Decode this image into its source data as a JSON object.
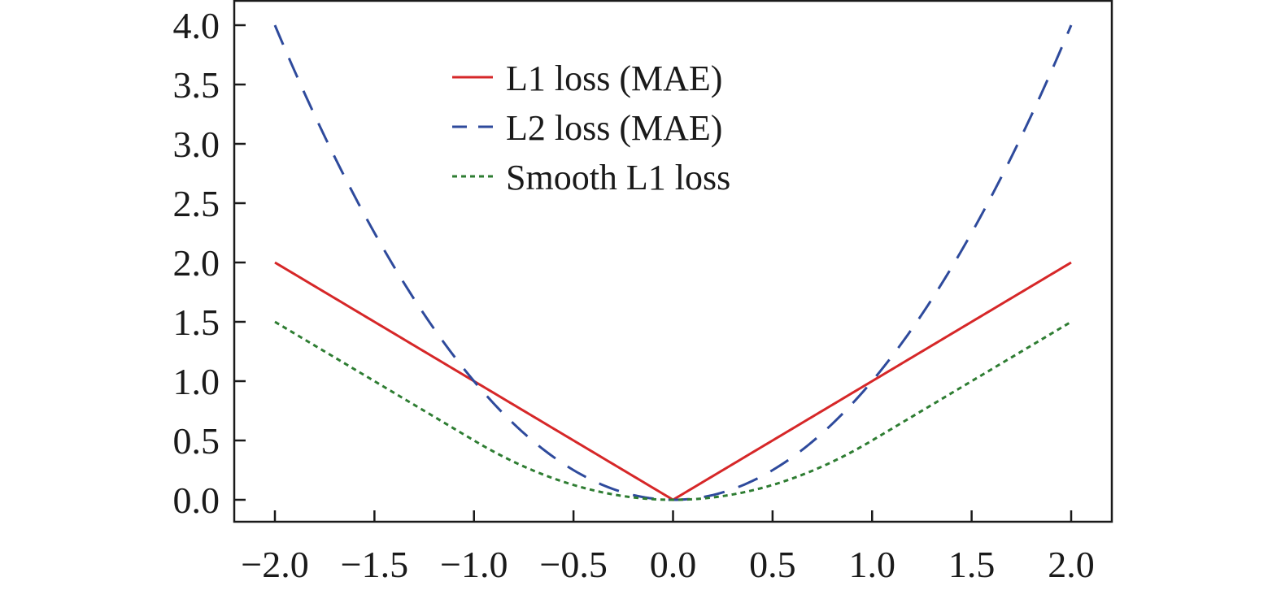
{
  "chart_data": {
    "type": "line",
    "title": "",
    "xlabel": "",
    "ylabel": "",
    "xlim": [
      -2.2,
      2.2
    ],
    "ylim": [
      -0.2,
      4.2
    ],
    "x_ticks": [
      -2.0,
      -1.5,
      -1.0,
      -0.5,
      0.0,
      0.5,
      1.0,
      1.5,
      2.0
    ],
    "x_tick_labels": [
      "−2.0",
      "−1.5",
      "−1.0",
      "−0.5",
      "0.0",
      "0.5",
      "1.0",
      "1.5",
      "2.0"
    ],
    "y_ticks": [
      0.0,
      0.5,
      1.0,
      1.5,
      2.0,
      2.5,
      3.0,
      3.5,
      4.0
    ],
    "y_tick_labels": [
      "0.0",
      "0.5",
      "1.0",
      "1.5",
      "2.0",
      "2.5",
      "3.0",
      "3.5",
      "4.0"
    ],
    "grid": false,
    "legend_position": "top-center",
    "x": [
      -2.0,
      -1.75,
      -1.5,
      -1.25,
      -1.0,
      -0.75,
      -0.5,
      -0.25,
      0.0,
      0.25,
      0.5,
      0.75,
      1.0,
      1.25,
      1.5,
      1.75,
      2.0
    ],
    "series": [
      {
        "name": "L1 loss (MAE)",
        "color": "#d62728",
        "style": "solid",
        "values": [
          2.0,
          1.75,
          1.5,
          1.25,
          1.0,
          0.75,
          0.5,
          0.25,
          0.0,
          0.25,
          0.5,
          0.75,
          1.0,
          1.25,
          1.5,
          1.75,
          2.0
        ]
      },
      {
        "name": "L2 loss (MAE)",
        "color": "#2e4a9c",
        "style": "dashed",
        "values": [
          4.0,
          3.0625,
          2.25,
          1.5625,
          1.0,
          0.5625,
          0.25,
          0.0625,
          0.0,
          0.0625,
          0.25,
          0.5625,
          1.0,
          1.5625,
          2.25,
          3.0625,
          4.0
        ]
      },
      {
        "name": "Smooth L1 loss",
        "color": "#2e7d32",
        "style": "dotted",
        "values": [
          1.5,
          1.25,
          1.0,
          0.75,
          0.5,
          0.28125,
          0.125,
          0.03125,
          0.0,
          0.03125,
          0.125,
          0.28125,
          0.5,
          0.75,
          1.0,
          1.25,
          1.5
        ]
      }
    ]
  }
}
